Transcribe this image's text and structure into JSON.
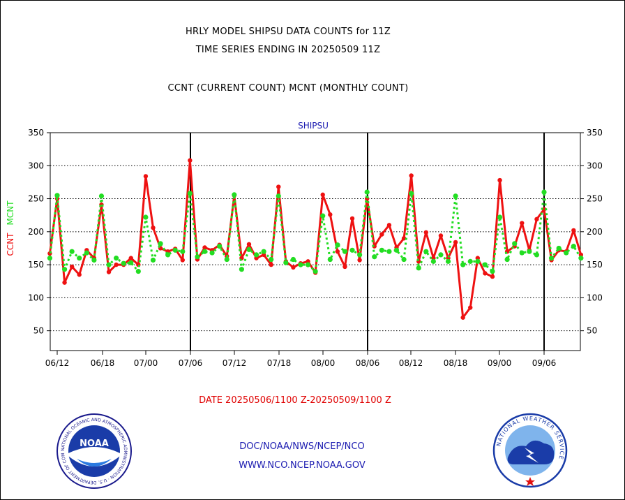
{
  "header": {
    "line1": "HRLY MODEL SHIPSU DATA COUNTS for 11Z",
    "line2": "TIME SERIES ENDING IN 20250509 11Z",
    "line3": "CCNT (CURRENT COUNT) MCNT (MONTHLY COUNT)"
  },
  "footer": {
    "date_range": "DATE 20250506/1100 Z-20250509/1100 Z",
    "org": "DOC/NOAA/NWS/NCEP/NCO",
    "url": "WWW.NCO.NCEP.NOAA.GOV"
  },
  "logos": {
    "noaa": {
      "text": "NOAA",
      "ring_text": "NATIONAL OCEANIC AND ATMOSPHERIC ADMINISTRATION · U.S. DEPARTMENT OF COMMERCE"
    },
    "nws": {
      "ring_text": "NATIONAL WEATHER SERVICE"
    }
  },
  "colors": {
    "ccnt": "#ee1111",
    "mcnt": "#22dd22",
    "axis": "#000000",
    "label_blue": "#1a1ab0",
    "footer_red": "#e00000"
  },
  "chart_data": {
    "type": "line",
    "title": "SHIPSU",
    "ylabel_left": "CCNT",
    "ylabel_right": "MCNT",
    "ylim": [
      20,
      350
    ],
    "yticks": [
      50,
      100,
      150,
      200,
      250,
      300,
      350
    ],
    "grid": true,
    "xtick_labels": [
      "06/12",
      "06/18",
      "07/00",
      "07/06",
      "07/12",
      "07/18",
      "08/00",
      "08/06",
      "08/12",
      "08/18",
      "09/00",
      "09/06"
    ],
    "major_divisions": [
      "07/06",
      "08/06",
      "09/06"
    ],
    "series": [
      {
        "name": "CCNT",
        "values": [
          167,
          250,
          123,
          147,
          135,
          172,
          160,
          241,
          139,
          150,
          150,
          160,
          150,
          284,
          206,
          175,
          170,
          174,
          157,
          308,
          158,
          176,
          172,
          180,
          163,
          255,
          160,
          181,
          160,
          165,
          150,
          268,
          155,
          146,
          152,
          155,
          138,
          256,
          226,
          170,
          147,
          220,
          157,
          250,
          178,
          196,
          210,
          176,
          190,
          285,
          155,
          199,
          160,
          194,
          160,
          184,
          70,
          85,
          160,
          137,
          132,
          278,
          170,
          178,
          213,
          172,
          219,
          234,
          157,
          172,
          170,
          202,
          165
        ]
      },
      {
        "name": "MCNT",
        "values": [
          160,
          255,
          143,
          170,
          160,
          168,
          157,
          254,
          150,
          160,
          152,
          153,
          140,
          222,
          157,
          182,
          165,
          172,
          170,
          258,
          162,
          170,
          168,
          178,
          158,
          256,
          143,
          173,
          165,
          170,
          158,
          254,
          153,
          158,
          150,
          150,
          140,
          224,
          158,
          180,
          170,
          172,
          165,
          260,
          162,
          172,
          170,
          172,
          158,
          258,
          145,
          170,
          155,
          165,
          155,
          254,
          150,
          155,
          155,
          150,
          140,
          222,
          158,
          182,
          168,
          170,
          165,
          260,
          160,
          175,
          168,
          178,
          160
        ]
      }
    ]
  }
}
